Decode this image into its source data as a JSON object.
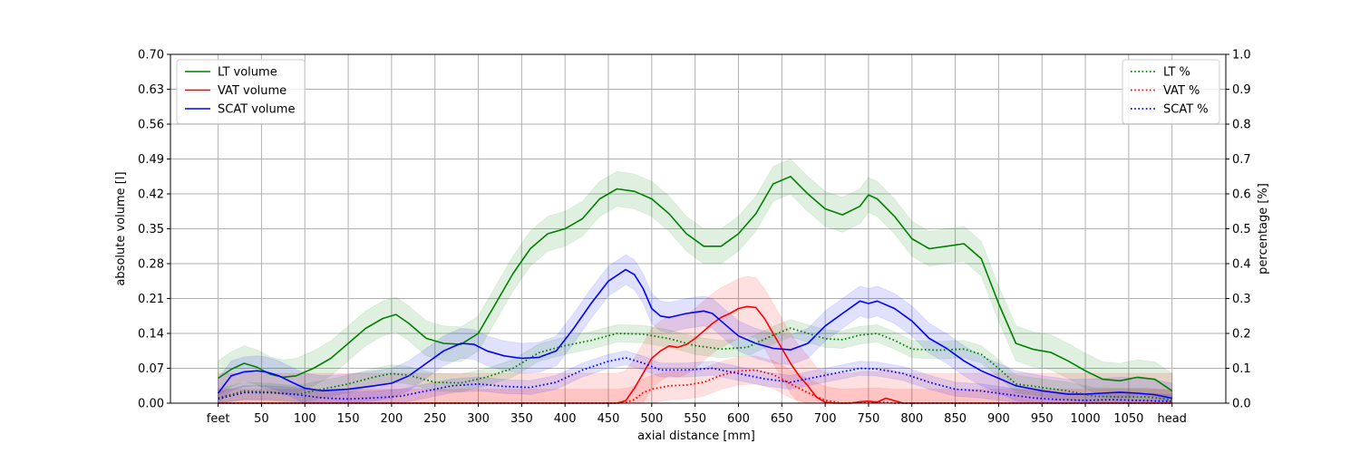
{
  "chart_data": {
    "type": "line",
    "xlabel": "axial distance [mm]",
    "ylabel_left": "absolute volume [l]",
    "ylabel_right": "percentage [%]",
    "xlim": [
      -55,
      1162
    ],
    "ylim_left": [
      0,
      0.7
    ],
    "ylim_right": [
      0,
      1.0
    ],
    "grid": true,
    "x_ticks": [
      {
        "v": 0,
        "label": "feet"
      },
      {
        "v": 50,
        "label": "50"
      },
      {
        "v": 100,
        "label": "100"
      },
      {
        "v": 150,
        "label": "150"
      },
      {
        "v": 200,
        "label": "200"
      },
      {
        "v": 250,
        "label": "250"
      },
      {
        "v": 300,
        "label": "300"
      },
      {
        "v": 350,
        "label": "350"
      },
      {
        "v": 400,
        "label": "400"
      },
      {
        "v": 450,
        "label": "450"
      },
      {
        "v": 500,
        "label": "500"
      },
      {
        "v": 550,
        "label": "550"
      },
      {
        "v": 600,
        "label": "600"
      },
      {
        "v": 650,
        "label": "650"
      },
      {
        "v": 700,
        "label": "700"
      },
      {
        "v": 750,
        "label": "750"
      },
      {
        "v": 800,
        "label": "800"
      },
      {
        "v": 850,
        "label": "850"
      },
      {
        "v": 900,
        "label": "900"
      },
      {
        "v": 950,
        "label": "950"
      },
      {
        "v": 1000,
        "label": "1000"
      },
      {
        "v": 1050,
        "label": "1050"
      },
      {
        "v": 1100,
        "label": "head"
      }
    ],
    "y_ticks_left": [
      "0.00",
      "0.07",
      "0.14",
      "0.21",
      "0.28",
      "0.35",
      "0.42",
      "0.49",
      "0.56",
      "0.63",
      "0.70"
    ],
    "y_ticks_right": [
      "0.0",
      "0.1",
      "0.2",
      "0.3",
      "0.4",
      "0.5",
      "0.6",
      "0.7",
      "0.8",
      "0.9",
      "1.0"
    ],
    "legend_left": {
      "position": "upper-left",
      "entries": [
        "LT volume",
        "VAT volume",
        "SCAT volume"
      ]
    },
    "legend_right": {
      "position": "upper-right",
      "entries": [
        "LT %",
        "VAT %",
        "SCAT %"
      ]
    },
    "series": [
      {
        "name": "LT volume",
        "axis": "left",
        "style": "solid",
        "color": "#008000",
        "band": 0.035,
        "x": [
          0,
          15,
          30,
          45,
          60,
          75,
          90,
          110,
          130,
          150,
          170,
          190,
          205,
          220,
          240,
          260,
          280,
          300,
          320,
          340,
          360,
          380,
          400,
          420,
          440,
          460,
          480,
          500,
          520,
          540,
          560,
          580,
          600,
          620,
          640,
          660,
          680,
          700,
          720,
          740,
          750,
          760,
          780,
          800,
          820,
          840,
          860,
          880,
          900,
          920,
          940,
          960,
          980,
          1000,
          1020,
          1040,
          1060,
          1080,
          1100
        ],
        "values": [
          0.05,
          0.068,
          0.08,
          0.072,
          0.058,
          0.052,
          0.055,
          0.07,
          0.09,
          0.12,
          0.15,
          0.17,
          0.178,
          0.16,
          0.13,
          0.12,
          0.118,
          0.14,
          0.2,
          0.26,
          0.31,
          0.34,
          0.35,
          0.37,
          0.41,
          0.43,
          0.425,
          0.41,
          0.38,
          0.34,
          0.315,
          0.315,
          0.34,
          0.38,
          0.44,
          0.455,
          0.42,
          0.39,
          0.378,
          0.395,
          0.418,
          0.41,
          0.375,
          0.33,
          0.31,
          0.315,
          0.32,
          0.29,
          0.2,
          0.12,
          0.108,
          0.102,
          0.085,
          0.065,
          0.048,
          0.045,
          0.052,
          0.048,
          0.025
        ]
      },
      {
        "name": "VAT volume",
        "axis": "left",
        "style": "solid",
        "color": "#ff0000",
        "band": 0.06,
        "x": [
          0,
          440,
          460,
          470,
          480,
          490,
          500,
          510,
          520,
          530,
          540,
          550,
          560,
          570,
          580,
          590,
          600,
          610,
          620,
          630,
          640,
          650,
          660,
          670,
          680,
          690,
          700,
          710,
          720,
          730,
          740,
          750,
          760,
          770,
          780,
          790,
          800,
          1100
        ],
        "values": [
          0,
          0,
          0,
          0.005,
          0.03,
          0.06,
          0.09,
          0.105,
          0.115,
          0.112,
          0.118,
          0.13,
          0.145,
          0.16,
          0.172,
          0.18,
          0.19,
          0.194,
          0.192,
          0.17,
          0.14,
          0.11,
          0.08,
          0.055,
          0.035,
          0.012,
          0.002,
          0,
          0,
          0,
          0.003,
          0.004,
          0.002,
          0.01,
          0.005,
          0,
          0,
          0
        ]
      },
      {
        "name": "SCAT volume",
        "axis": "left",
        "style": "solid",
        "color": "#0000ff",
        "band": 0.03,
        "x": [
          0,
          15,
          30,
          45,
          55,
          70,
          85,
          100,
          120,
          150,
          180,
          200,
          220,
          240,
          260,
          280,
          295,
          310,
          330,
          350,
          370,
          390,
          410,
          430,
          450,
          470,
          480,
          490,
          500,
          510,
          520,
          540,
          560,
          570,
          580,
          600,
          620,
          640,
          660,
          680,
          700,
          720,
          740,
          750,
          760,
          780,
          800,
          820,
          840,
          860,
          880,
          900,
          920,
          950,
          980,
          1000,
          1020,
          1040,
          1060,
          1080,
          1100
        ],
        "values": [
          0.02,
          0.055,
          0.063,
          0.065,
          0.063,
          0.055,
          0.042,
          0.03,
          0.025,
          0.028,
          0.035,
          0.04,
          0.055,
          0.08,
          0.105,
          0.12,
          0.118,
          0.105,
          0.095,
          0.09,
          0.092,
          0.105,
          0.15,
          0.2,
          0.245,
          0.268,
          0.258,
          0.23,
          0.19,
          0.175,
          0.172,
          0.18,
          0.185,
          0.18,
          0.165,
          0.135,
          0.12,
          0.11,
          0.107,
          0.12,
          0.155,
          0.18,
          0.205,
          0.2,
          0.205,
          0.19,
          0.165,
          0.13,
          0.11,
          0.085,
          0.065,
          0.05,
          0.035,
          0.025,
          0.018,
          0.018,
          0.02,
          0.022,
          0.02,
          0.017,
          0.01
        ]
      },
      {
        "name": "LT %",
        "axis": "right",
        "style": "dotted",
        "color": "#008000",
        "band": 0.025,
        "x": [
          0,
          30,
          60,
          90,
          120,
          150,
          180,
          200,
          220,
          250,
          280,
          310,
          340,
          370,
          400,
          430,
          460,
          490,
          520,
          550,
          580,
          610,
          640,
          660,
          680,
          700,
          720,
          740,
          760,
          780,
          800,
          830,
          860,
          880,
          900,
          920,
          950,
          980,
          1010,
          1040,
          1070,
          1100
        ],
        "values": [
          0.015,
          0.035,
          0.032,
          0.025,
          0.04,
          0.055,
          0.075,
          0.085,
          0.08,
          0.06,
          0.058,
          0.075,
          0.1,
          0.145,
          0.165,
          0.18,
          0.2,
          0.198,
          0.185,
          0.165,
          0.155,
          0.16,
          0.195,
          0.215,
          0.2,
          0.185,
          0.182,
          0.195,
          0.2,
          0.18,
          0.155,
          0.152,
          0.155,
          0.14,
          0.1,
          0.055,
          0.045,
          0.035,
          0.02,
          0.018,
          0.018,
          0.01
        ]
      },
      {
        "name": "VAT %",
        "axis": "right",
        "style": "dotted",
        "color": "#ff0000",
        "band": 0.04,
        "x": [
          0,
          450,
          460,
          470,
          480,
          490,
          500,
          520,
          540,
          560,
          580,
          600,
          620,
          640,
          660,
          680,
          700,
          720,
          740,
          760,
          780,
          1100
        ],
        "values": [
          0,
          0,
          0,
          0.002,
          0.01,
          0.03,
          0.04,
          0.05,
          0.052,
          0.06,
          0.08,
          0.092,
          0.095,
          0.082,
          0.055,
          0.03,
          0.008,
          0,
          0.002,
          0.004,
          0,
          0
        ]
      },
      {
        "name": "SCAT %",
        "axis": "right",
        "style": "dotted",
        "color": "#0000ff",
        "band": 0.02,
        "x": [
          0,
          30,
          60,
          90,
          120,
          150,
          180,
          210,
          240,
          270,
          300,
          330,
          360,
          390,
          420,
          450,
          470,
          490,
          510,
          540,
          570,
          600,
          630,
          660,
          690,
          720,
          740,
          760,
          790,
          820,
          850,
          880,
          910,
          940,
          970,
          1000,
          1030,
          1060,
          1100
        ],
        "values": [
          0.012,
          0.03,
          0.03,
          0.025,
          0.015,
          0.012,
          0.015,
          0.02,
          0.035,
          0.05,
          0.055,
          0.048,
          0.045,
          0.06,
          0.095,
          0.12,
          0.13,
          0.115,
          0.095,
          0.095,
          0.1,
          0.085,
          0.07,
          0.06,
          0.075,
          0.09,
          0.1,
          0.098,
          0.085,
          0.06,
          0.04,
          0.035,
          0.025,
          0.015,
          0.01,
          0.008,
          0.01,
          0.008,
          0.005
        ]
      }
    ]
  }
}
